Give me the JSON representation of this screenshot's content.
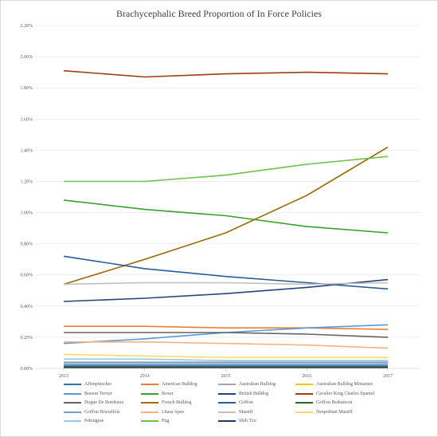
{
  "chart_data": {
    "type": "line",
    "title": "Brachycephalic Breed Proportion of In Force Policies",
    "xlabel": "",
    "ylabel": "",
    "x": [
      "2013",
      "2014",
      "2015",
      "2016",
      "2017"
    ],
    "ylim": [
      0,
      2.2
    ],
    "yticks": [
      "0.00%",
      "0.20%",
      "0.40%",
      "0.60%",
      "0.80%",
      "1.00%",
      "1.20%",
      "1.40%",
      "1.60%",
      "1.80%",
      "2.00%",
      "2.20%"
    ],
    "grid": true,
    "legend": "bottom",
    "series": [
      {
        "name": "Affenpinscher",
        "color": "#2e75b6",
        "values": [
          0.02,
          0.02,
          0.02,
          0.02,
          0.02
        ]
      },
      {
        "name": "American Bulldog",
        "color": "#ed7d31",
        "values": [
          0.27,
          0.27,
          0.26,
          0.26,
          0.25
        ]
      },
      {
        "name": "Australian Bulldog",
        "color": "#a5a5a5",
        "values": [
          0.03,
          0.03,
          0.03,
          0.03,
          0.03
        ]
      },
      {
        "name": "Australian Bulldog Miniature",
        "color": "#ffc000",
        "values": [
          0.01,
          0.01,
          0.01,
          0.01,
          0.01
        ]
      },
      {
        "name": "Boston Terrier",
        "color": "#5b9bd5",
        "values": [
          0.16,
          0.19,
          0.23,
          0.26,
          0.28
        ]
      },
      {
        "name": "Boxer",
        "color": "#3aa02c",
        "values": [
          1.08,
          1.02,
          0.98,
          0.91,
          0.87
        ]
      },
      {
        "name": "British Bulldog",
        "color": "#264478",
        "values": [
          0.43,
          0.45,
          0.48,
          0.52,
          0.57
        ]
      },
      {
        "name": "Cavalier King Charles Spaniel",
        "color": "#9e3d0a",
        "values": [
          1.91,
          1.87,
          1.89,
          1.9,
          1.89
        ]
      },
      {
        "name": "Dogue De Bordeaux",
        "color": "#636363",
        "values": [
          0.23,
          0.23,
          0.23,
          0.22,
          0.2
        ]
      },
      {
        "name": "French Bulldog",
        "color": "#9c6b0a",
        "values": [
          0.54,
          0.7,
          0.87,
          1.11,
          1.42
        ]
      },
      {
        "name": "Griffon",
        "color": "#2a5d93",
        "values": [
          0.72,
          0.64,
          0.59,
          0.55,
          0.51
        ]
      },
      {
        "name": "Griffon Brabancon",
        "color": "#1e6b2a",
        "values": [
          0.005,
          0.005,
          0.005,
          0.005,
          0.005
        ]
      },
      {
        "name": "Griffon Bruxellois",
        "color": "#6aa3d9",
        "values": [
          0.04,
          0.04,
          0.04,
          0.04,
          0.04
        ]
      },
      {
        "name": "Lhasa Apso",
        "color": "#f4b183",
        "values": [
          0.17,
          0.17,
          0.16,
          0.15,
          0.13
        ]
      },
      {
        "name": "Mastiff",
        "color": "#bfbfbf",
        "values": [
          0.54,
          0.55,
          0.55,
          0.54,
          0.55
        ]
      },
      {
        "name": "Neopolitan Mastiff",
        "color": "#ffd966",
        "values": [
          0.09,
          0.08,
          0.07,
          0.07,
          0.07
        ]
      },
      {
        "name": "Pekingese",
        "color": "#9dc3e6",
        "values": [
          0.06,
          0.06,
          0.05,
          0.05,
          0.05
        ]
      },
      {
        "name": "Pug",
        "color": "#70c04a",
        "values": [
          1.2,
          1.2,
          1.24,
          1.31,
          1.36
        ]
      },
      {
        "name": "Shih Tzu",
        "color": "#203864",
        "values": [
          0.01,
          0.01,
          0.01,
          0.01,
          0.01
        ]
      }
    ]
  }
}
